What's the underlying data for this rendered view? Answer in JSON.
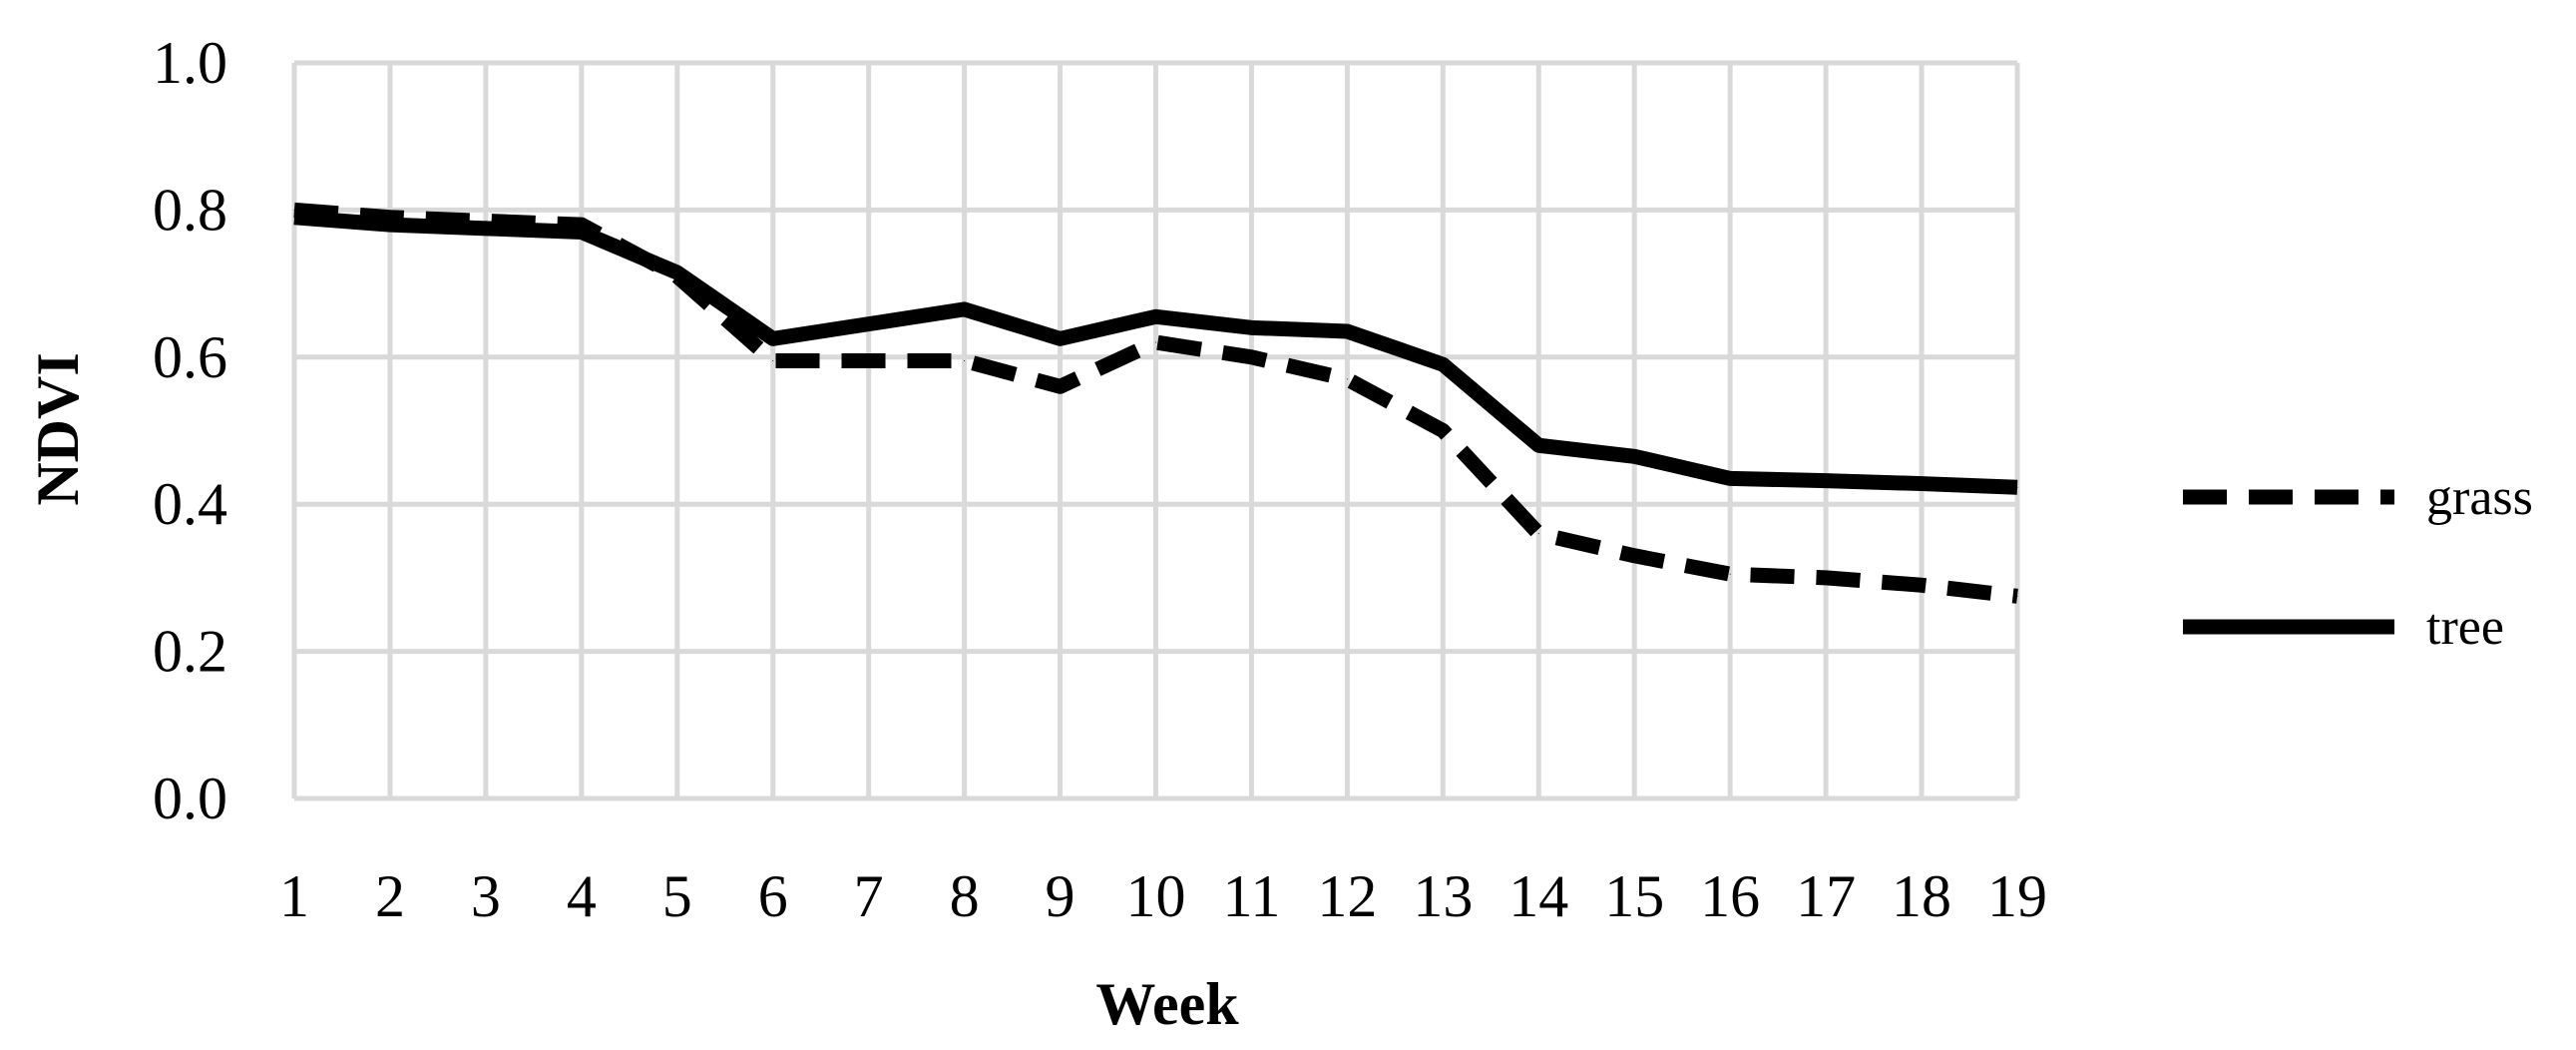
{
  "chart_data": {
    "type": "line",
    "title": "",
    "xlabel": "Week",
    "ylabel": "NDVI",
    "x": [
      1,
      2,
      3,
      4,
      5,
      6,
      7,
      8,
      9,
      10,
      11,
      12,
      13,
      14,
      15,
      16,
      17,
      18,
      19
    ],
    "x_tick_labels": [
      "1",
      "2",
      "3",
      "4",
      "5",
      "6",
      "7",
      "8",
      "9",
      "10",
      "11",
      "12",
      "13",
      "14",
      "15",
      "16",
      "17",
      "18",
      "19"
    ],
    "ylim": [
      0.0,
      1.0
    ],
    "y_ticks": [
      0.0,
      0.2,
      0.4,
      0.6,
      0.8,
      1.0
    ],
    "y_tick_labels": [
      "0.0",
      "0.2",
      "0.4",
      "0.6",
      "0.8",
      "1.0"
    ],
    "grid": true,
    "legend_position": "right",
    "series": [
      {
        "name": "grass",
        "style": "dashed",
        "color": "#000000",
        "values": [
          0.8,
          0.79,
          0.785,
          0.78,
          0.71,
          0.595,
          0.595,
          0.595,
          0.56,
          0.62,
          0.6,
          0.57,
          0.5,
          0.36,
          0.33,
          0.305,
          0.3,
          0.29,
          0.275
        ]
      },
      {
        "name": "tree",
        "style": "solid",
        "color": "#000000",
        "values": [
          0.79,
          0.78,
          0.775,
          0.77,
          0.715,
          0.625,
          0.645,
          0.665,
          0.625,
          0.655,
          0.64,
          0.635,
          0.59,
          0.48,
          0.465,
          0.435,
          0.432,
          0.428,
          0.423
        ]
      }
    ]
  }
}
